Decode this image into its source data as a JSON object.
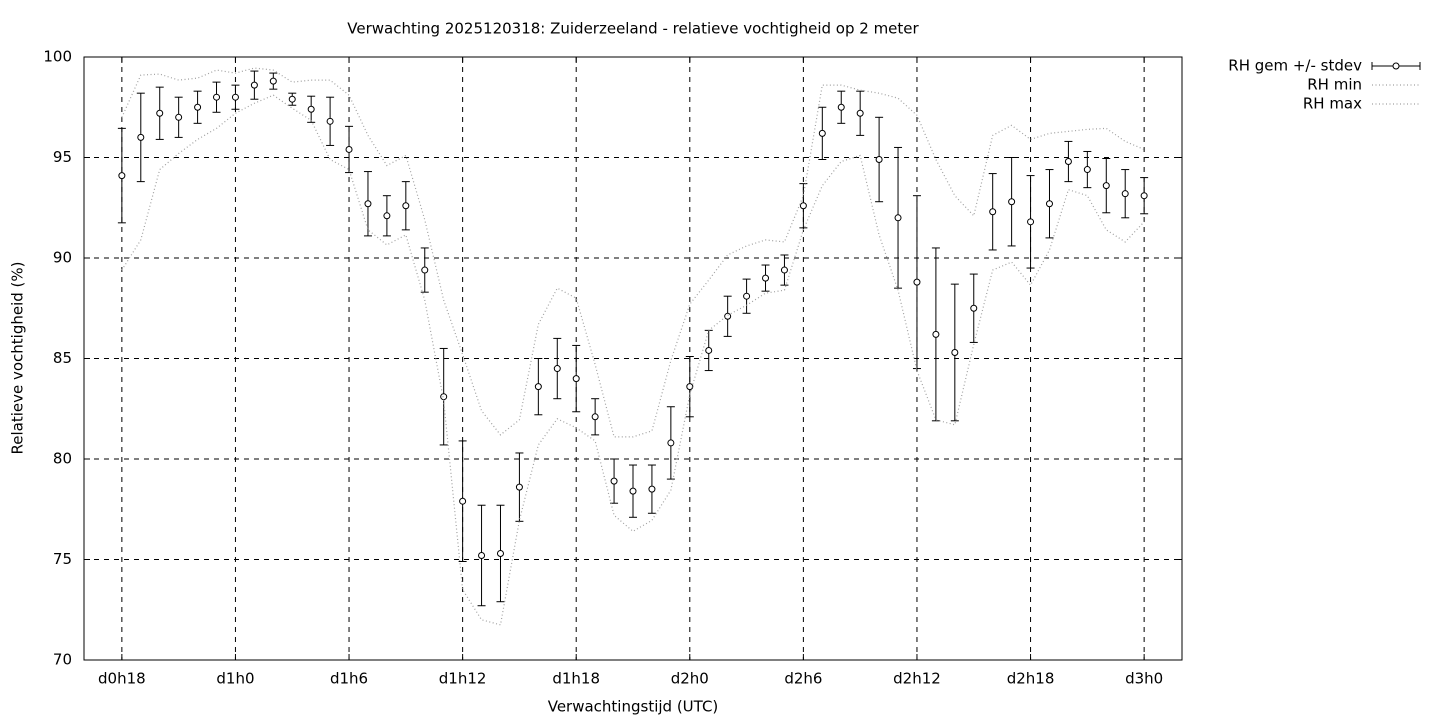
{
  "chart_data": {
    "type": "errorbar",
    "title": "Verwachting 2025120318: Zuiderzeeland - relatieve vochtigheid op 2 meter",
    "xlabel": "Verwachtingstijd (UTC)",
    "ylabel": "Relatieve vochtigheid (%)",
    "x": [
      18,
      19,
      20,
      21,
      22,
      23,
      24,
      25,
      26,
      27,
      28,
      29,
      30,
      31,
      32,
      33,
      34,
      35,
      36,
      37,
      38,
      39,
      40,
      41,
      42,
      43,
      44,
      45,
      46,
      47,
      48,
      49,
      50,
      51,
      52,
      53,
      54,
      55,
      56,
      57,
      58,
      59,
      60,
      61,
      62,
      63,
      64,
      65,
      66,
      67,
      68,
      69,
      70,
      71,
      72
    ],
    "series": [
      {
        "name": "RH gem +/- stdev",
        "color": "#000000",
        "style": "errorbars",
        "values": [
          94.1,
          96.0,
          97.2,
          97.0,
          97.5,
          98.0,
          98.0,
          98.6,
          98.8,
          97.9,
          97.4,
          96.8,
          95.4,
          92.7,
          92.1,
          92.6,
          89.4,
          83.1,
          77.9,
          75.2,
          75.3,
          78.6,
          83.6,
          84.5,
          84.0,
          82.1,
          78.9,
          78.4,
          78.5,
          80.8,
          83.6,
          85.4,
          87.1,
          88.1,
          89.0,
          89.4,
          92.6,
          96.2,
          97.5,
          97.2,
          94.9,
          92.0,
          88.8,
          86.2,
          85.3,
          87.5,
          92.3,
          92.8,
          91.8,
          92.7,
          94.8,
          94.4,
          93.6,
          93.2,
          93.1
        ],
        "errors": [
          2.35,
          2.2,
          1.3,
          1.0,
          0.8,
          0.75,
          0.6,
          0.7,
          0.4,
          0.3,
          0.65,
          1.2,
          1.15,
          1.6,
          1.0,
          1.2,
          1.1,
          2.4,
          3.0,
          2.5,
          2.4,
          1.7,
          1.4,
          1.5,
          1.65,
          0.9,
          1.1,
          1.3,
          1.2,
          1.8,
          1.5,
          1.0,
          1.0,
          0.85,
          0.65,
          0.75,
          1.1,
          1.3,
          0.8,
          1.1,
          2.1,
          3.5,
          4.3,
          4.3,
          3.4,
          1.7,
          1.9,
          2.2,
          2.3,
          1.7,
          1.0,
          0.9,
          1.35,
          1.2,
          0.9
        ]
      },
      {
        "name": "RH min",
        "color": "#a0a0a0",
        "style": "dotted",
        "values": [
          89.4,
          90.9,
          94.4,
          95.2,
          95.9,
          96.45,
          97.2,
          97.7,
          98.1,
          97.45,
          96.85,
          94.9,
          94.4,
          91.4,
          90.65,
          91.15,
          87.9,
          82.9,
          73.5,
          72.0,
          71.75,
          76.95,
          80.7,
          82.0,
          81.55,
          80.9,
          77.2,
          76.4,
          76.95,
          78.45,
          83.2,
          86.4,
          87.15,
          87.65,
          88.25,
          88.4,
          91.4,
          93.6,
          94.8,
          95.1,
          91.15,
          88.4,
          84.4,
          81.95,
          81.7,
          85.7,
          89.4,
          89.8,
          88.65,
          90.4,
          93.4,
          93.1,
          91.4,
          90.8,
          91.8
        ]
      },
      {
        "name": "RH max",
        "color": "#a0a0a0",
        "style": "dotted",
        "values": [
          97.0,
          99.1,
          99.15,
          98.85,
          98.95,
          99.35,
          99.2,
          99.45,
          99.35,
          98.75,
          98.85,
          98.85,
          98.1,
          96.1,
          94.6,
          95.1,
          91.9,
          87.9,
          85.2,
          82.4,
          81.2,
          81.95,
          86.7,
          88.5,
          88.0,
          84.7,
          81.1,
          81.1,
          81.4,
          84.9,
          87.7,
          88.9,
          90.15,
          90.6,
          90.9,
          90.8,
          93.1,
          98.6,
          98.6,
          98.35,
          98.2,
          97.95,
          97.1,
          94.9,
          93.1,
          92.1,
          96.1,
          96.6,
          95.9,
          96.2,
          96.3,
          96.4,
          96.45,
          95.8,
          95.4
        ]
      }
    ],
    "xlim": [
      16,
      74
    ],
    "xticks": [
      {
        "value": 18,
        "label": "d0h18"
      },
      {
        "value": 24,
        "label": "d1h0"
      },
      {
        "value": 30,
        "label": "d1h6"
      },
      {
        "value": 36,
        "label": "d1h12"
      },
      {
        "value": 42,
        "label": "d1h18"
      },
      {
        "value": 48,
        "label": "d2h0"
      },
      {
        "value": 54,
        "label": "d2h6"
      },
      {
        "value": 60,
        "label": "d2h12"
      },
      {
        "value": 66,
        "label": "d2h18"
      },
      {
        "value": 72,
        "label": "d3h0"
      }
    ],
    "ylim": [
      70,
      100
    ],
    "yticks": [
      70,
      75,
      80,
      85,
      90,
      95,
      100
    ],
    "grid": true,
    "legend": "outside-top-right"
  }
}
